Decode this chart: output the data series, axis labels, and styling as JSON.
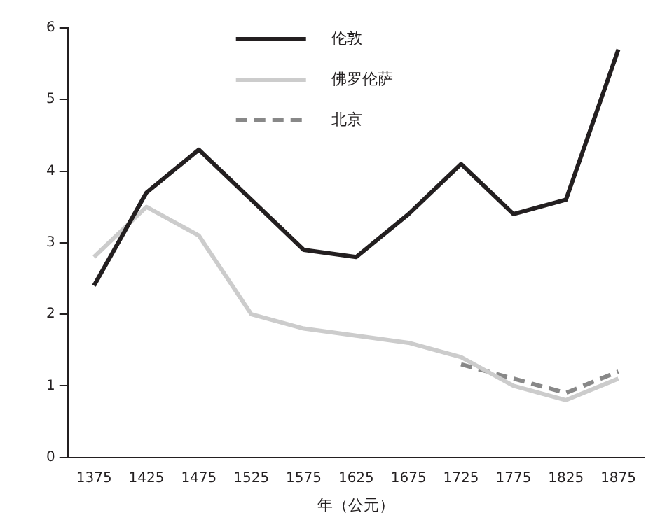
{
  "chart_data": {
    "type": "line",
    "xlabel": "年（公元）",
    "categories": [
      "1375",
      "1425",
      "1475",
      "1525",
      "1575",
      "1625",
      "1675",
      "1725",
      "1775",
      "1825",
      "1875"
    ],
    "series": [
      {
        "name": "伦敦",
        "color": "#231f20",
        "values": [
          2.4,
          3.7,
          4.3,
          3.6,
          2.9,
          2.8,
          3.4,
          4.1,
          3.4,
          3.6,
          5.7
        ]
      },
      {
        "name": "佛罗伦萨",
        "color": "#cccccc",
        "values": [
          2.8,
          3.5,
          3.1,
          2.0,
          1.8,
          1.7,
          1.6,
          1.4,
          1.0,
          0.8,
          1.1
        ]
      },
      {
        "name": "北京",
        "color": "#888888",
        "line_style": "dashed",
        "values": [
          null,
          null,
          null,
          null,
          null,
          null,
          null,
          1.3,
          1.1,
          0.9,
          1.2
        ]
      }
    ],
    "ylim": [
      0,
      6
    ],
    "yticks": [
      0,
      1,
      2,
      3,
      4,
      5,
      6
    ],
    "grid": false,
    "legend": "top",
    "marker": "none"
  }
}
